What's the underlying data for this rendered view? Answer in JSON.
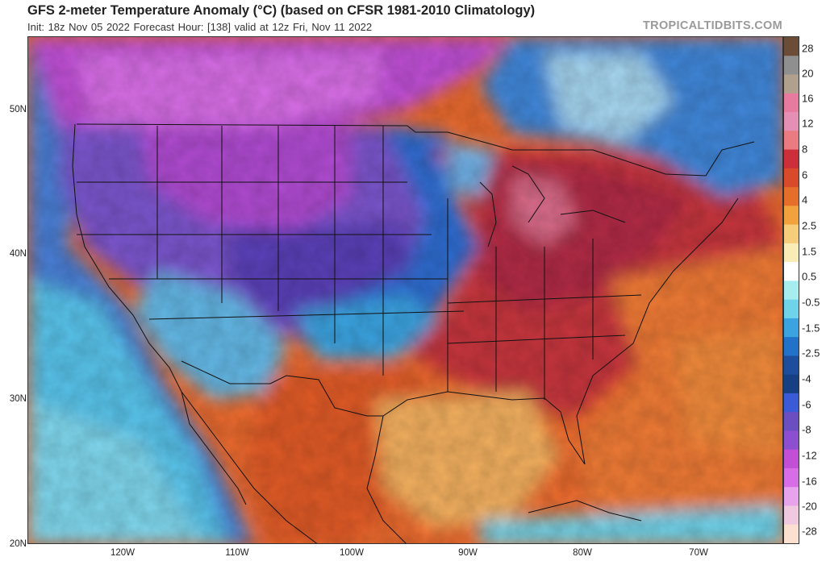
{
  "header": {
    "title": "GFS 2-meter Temperature Anomaly (°C) (based on CFSR 1981-2010 Climatology)",
    "subtitle": "Init: 18z Nov 05 2022   Forecast Hour: [138]   valid at 12z Fri, Nov 11 2022",
    "source": "TROPICALTIDBITS.COM"
  },
  "colorbar": {
    "labels": [
      "28",
      "20",
      "16",
      "12",
      "8",
      "6",
      "4",
      "2.5",
      "1.5",
      "0.5",
      "-0.5",
      "-1.5",
      "-2.5",
      "-4",
      "-6",
      "-8",
      "-12",
      "-16",
      "-20",
      "-28"
    ],
    "colors": [
      "#6b4c36",
      "#8f8f8f",
      "#b2a08f",
      "#e77a9f",
      "#e58fb5",
      "#ea7b80",
      "#cc2e3a",
      "#d94a2a",
      "#e46e2a",
      "#f2a23c",
      "#f6cd7a",
      "#f9ecb6",
      "#ffffff",
      "#a6edf0",
      "#6fd3ea",
      "#3ba3e0",
      "#2372c9",
      "#1d4e9e",
      "#174084",
      "#3a5ad8",
      "#6b4fc0",
      "#8c4fd0",
      "#c250d6",
      "#d86ee6",
      "#e7a3ec",
      "#f0c8e0",
      "#fbe0d0"
    ]
  },
  "axes": {
    "lat_labels": [
      "50N",
      "40N",
      "30N",
      "20N"
    ],
    "lon_labels": [
      "120W",
      "110W",
      "100W",
      "90W",
      "80W",
      "70W"
    ]
  }
}
